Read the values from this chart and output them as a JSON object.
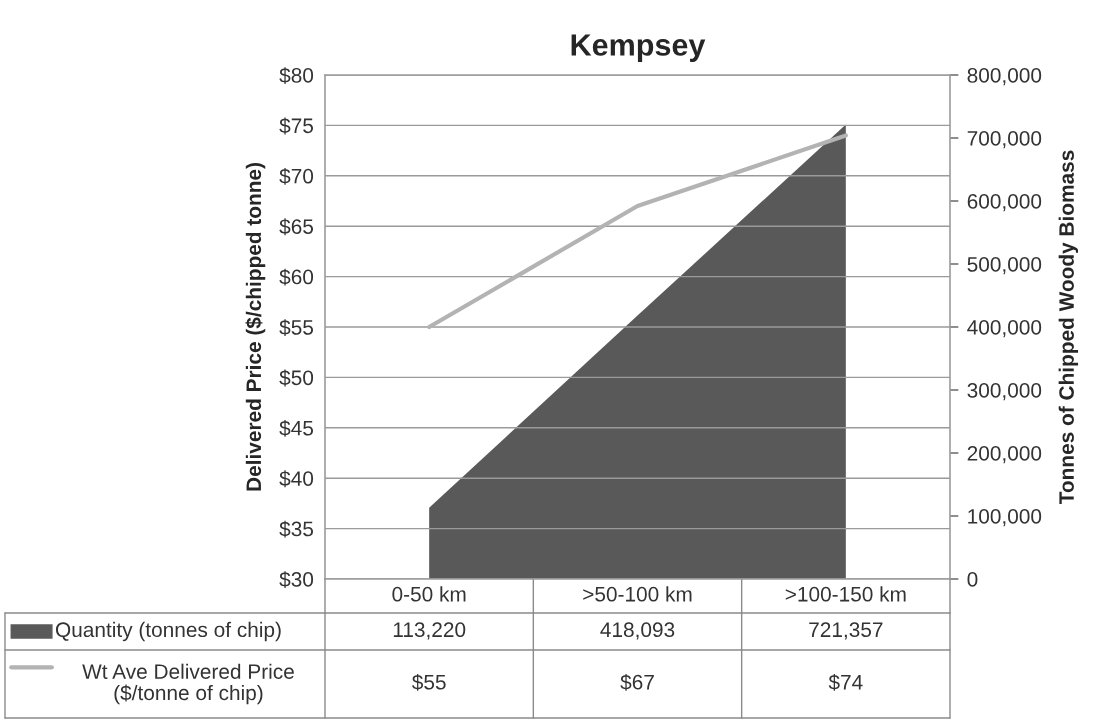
{
  "chart_data": {
    "type": "area",
    "title": "Kempsey",
    "ylabel": "Delivered Price ($/chipped tonne)",
    "y2label": "Tonnes of Chipped Woody Biomass",
    "categories": [
      "0-50 km",
      ">50-100 km",
      ">100-150 km"
    ],
    "series": [
      {
        "name": "Quantity (tonnes of chip)",
        "axis": "y2",
        "color": "#595959",
        "values": [
          113220,
          418093,
          721357
        ],
        "value_labels": [
          "113,220",
          "418,093",
          "721,357"
        ]
      },
      {
        "name": "Wt Ave Delivered Price ($/tonne of chip)",
        "type": "line",
        "axis": "y",
        "color": "#b3b3b3",
        "values": [
          55,
          67,
          74
        ],
        "value_labels": [
          "$55",
          "$67",
          "$74"
        ]
      }
    ],
    "ylim": [
      30,
      80
    ],
    "yticks": [
      {
        "value": 30,
        "label": "$30"
      },
      {
        "value": 35,
        "label": "$35"
      },
      {
        "value": 40,
        "label": "$40"
      },
      {
        "value": 45,
        "label": "$45"
      },
      {
        "value": 50,
        "label": "$50"
      },
      {
        "value": 55,
        "label": "$55"
      },
      {
        "value": 60,
        "label": "$60"
      },
      {
        "value": 65,
        "label": "$65"
      },
      {
        "value": 70,
        "label": "$70"
      },
      {
        "value": 75,
        "label": "$75"
      },
      {
        "value": 80,
        "label": "$80"
      }
    ],
    "y2lim": [
      0,
      800000
    ],
    "y2ticks": [
      0,
      {
        "value": 100000,
        "label": "100,000"
      },
      {
        "value": 200000,
        "label": "200,000"
      },
      {
        "value": 300000,
        "label": "300,000"
      },
      {
        "value": 400000,
        "label": "400,000"
      },
      {
        "value": 500000,
        "label": "500,000"
      },
      {
        "value": 600000,
        "label": "600,000"
      },
      {
        "value": 700000,
        "label": "700,000"
      },
      {
        "value": 800000,
        "label": "800,000"
      }
    ],
    "grid": "y",
    "legend": "bottom left",
    "data_labels": true
  }
}
